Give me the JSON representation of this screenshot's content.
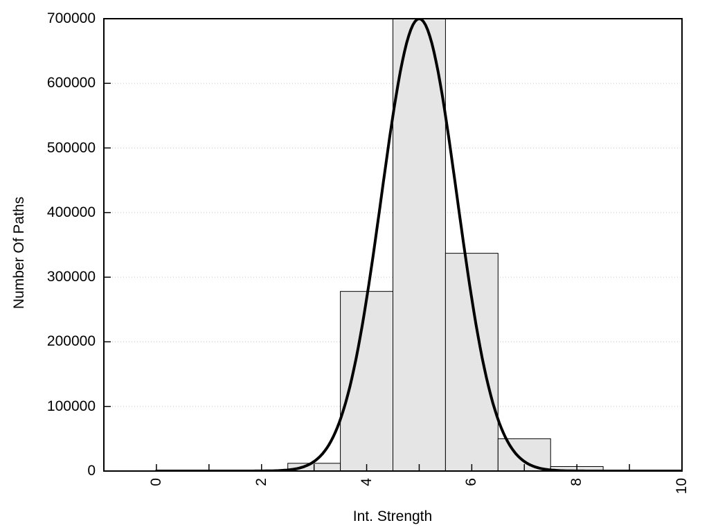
{
  "chart_data": {
    "type": "bar",
    "subtype": "histogram-with-fit-curve",
    "title": "",
    "xlabel": "Int. Strength",
    "ylabel": "Number Of Paths",
    "xlim": [
      -1,
      10
    ],
    "ylim": [
      0,
      700000
    ],
    "grid": "horizontal-dotted",
    "legend": "none",
    "x_ticks": [
      [
        0,
        "0"
      ],
      [
        1,
        ""
      ],
      [
        2,
        "2"
      ],
      [
        3,
        ""
      ],
      [
        4,
        "4"
      ],
      [
        5,
        ""
      ],
      [
        6,
        "6"
      ],
      [
        7,
        ""
      ],
      [
        8,
        "8"
      ],
      [
        9,
        ""
      ],
      [
        10,
        "10"
      ]
    ],
    "y_ticks": [
      [
        0,
        "0"
      ],
      [
        100000,
        "100000"
      ],
      [
        200000,
        "200000"
      ],
      [
        300000,
        "300000"
      ],
      [
        400000,
        "400000"
      ],
      [
        500000,
        "500000"
      ],
      [
        600000,
        "600000"
      ],
      [
        700000,
        "700000"
      ]
    ],
    "histogram": {
      "bin_width": 1,
      "bin_centers": [
        3,
        4,
        5,
        6,
        7,
        8
      ],
      "counts": [
        12000,
        278000,
        700000,
        337000,
        50000,
        7000
      ]
    },
    "fit_curve": {
      "shape": "gaussian",
      "mean": 5.0,
      "sigma": 0.72,
      "amplitude": 700000,
      "x_range": [
        0,
        10
      ]
    },
    "colors": {
      "background": "#ffffff",
      "bar_fill": "#e5e5e5",
      "bar_edge": "#000000",
      "curve": "#000000",
      "grid": "#c8c8c8",
      "axis": "#000000",
      "text": "#000000"
    }
  }
}
